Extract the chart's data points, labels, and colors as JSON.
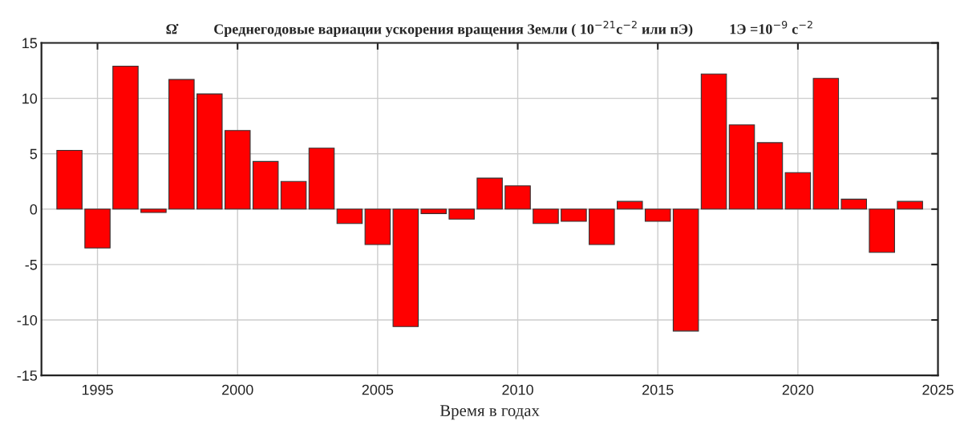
{
  "chart_data": {
    "type": "bar",
    "title": "Ω̇          Среднегодовые вариации ускорения вращения Земли ( 10$^{−21}$с$^{−2}$ или пЭ)          1Э =10$^{−9}$ с$^{−2}$",
    "xlabel": "Время в годах",
    "x": [
      1994,
      1995,
      1996,
      1997,
      1998,
      1999,
      2000,
      2001,
      2002,
      2003,
      2004,
      2005,
      2006,
      2007,
      2008,
      2009,
      2010,
      2011,
      2012,
      2013,
      2014,
      2015,
      2016,
      2017,
      2018,
      2019,
      2020,
      2021,
      2022,
      2023,
      2024
    ],
    "values": [
      5.3,
      -3.5,
      12.9,
      -0.3,
      11.7,
      10.4,
      7.1,
      4.3,
      2.5,
      5.5,
      -1.3,
      -3.2,
      -10.6,
      -0.4,
      -0.9,
      2.8,
      2.1,
      -1.3,
      -1.1,
      -3.2,
      0.7,
      -1.1,
      -11.0,
      12.2,
      7.6,
      6.0,
      3.3,
      11.8,
      0.9,
      -3.9,
      0.7
    ],
    "color": "#ff0000",
    "xlim": [
      1993,
      2025
    ],
    "xticks": [
      1995,
      2000,
      2005,
      2010,
      2015,
      2020,
      2025
    ],
    "ylim": [
      -15,
      15
    ],
    "yticks": [
      -15,
      -10,
      -5,
      0,
      5,
      10,
      15
    ],
    "grid": true
  }
}
